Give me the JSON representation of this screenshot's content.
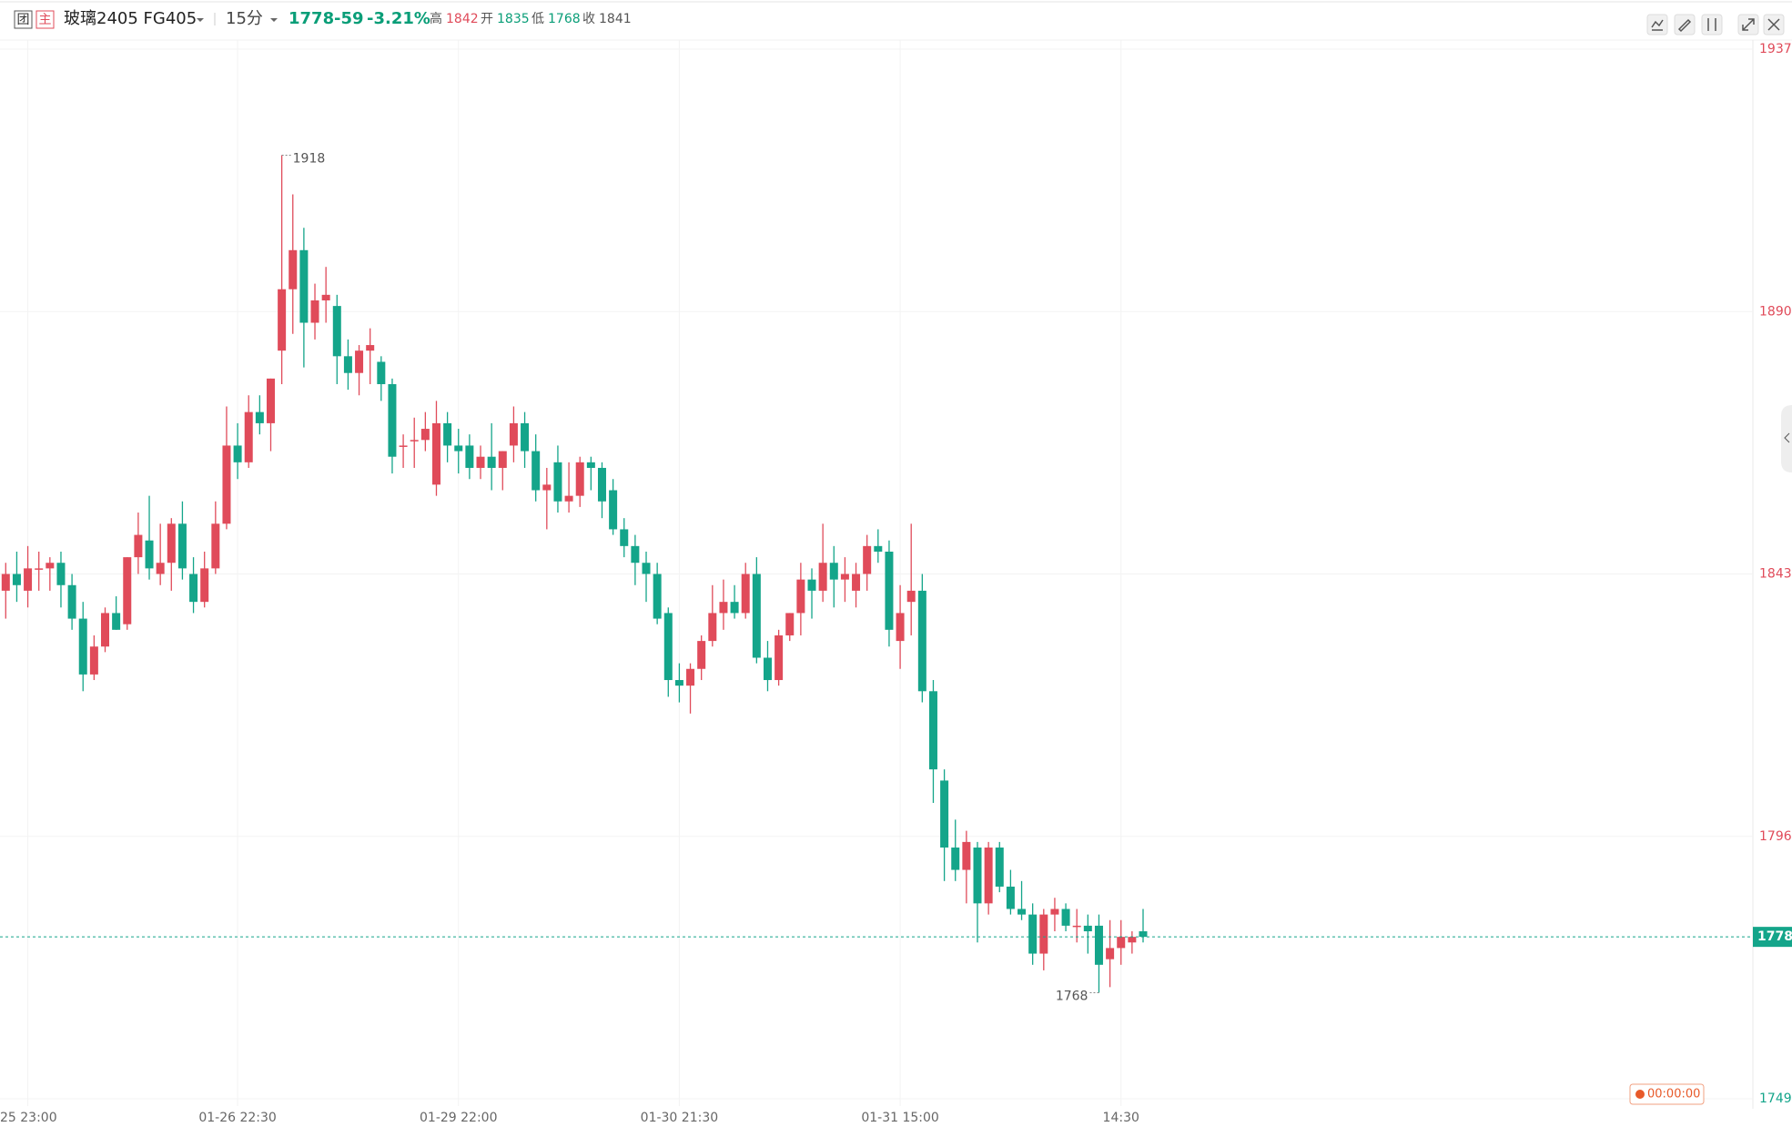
{
  "header": {
    "badge1": "团",
    "badge2": "主",
    "symbol": "玻璃2405 FG405",
    "period": "15分",
    "last": "1778",
    "change": "-59",
    "pct": "-3.21%",
    "high_label": "高",
    "high": "1842",
    "open_label": "开",
    "open": "1835",
    "low_label": "低",
    "low": "1768",
    "close_label": "收",
    "close": "1841"
  },
  "timer": "00:00:00",
  "chart_data": {
    "type": "candlestick",
    "up_color": "#e04b5a",
    "down_color": "#14a58a",
    "ylim": [
      1749,
      1937
    ],
    "yticks": [
      1749,
      1796,
      1843,
      1890,
      1937
    ],
    "grid": true,
    "last_price": 1778,
    "high_mark": 1918,
    "low_mark": 1768,
    "categories": [
      null,
      null,
      "25 23:00",
      null,
      null,
      null,
      null,
      null,
      null,
      null,
      null,
      null,
      null,
      null,
      null,
      null,
      null,
      null,
      null,
      null,
      null,
      "01-26 22:30",
      null,
      null,
      null,
      null,
      null,
      null,
      null,
      null,
      null,
      null,
      null,
      null,
      null,
      null,
      null,
      null,
      null,
      null,
      null,
      "01-29 22:00",
      null,
      null,
      null,
      null,
      null,
      null,
      null,
      null,
      null,
      null,
      null,
      null,
      null,
      null,
      null,
      null,
      null,
      null,
      null,
      "01-30 21:30",
      null,
      null,
      null,
      null,
      null,
      null,
      null,
      null,
      null,
      null,
      null,
      null,
      null,
      null,
      null,
      null,
      null,
      null,
      null,
      "01-31 15:00",
      null,
      null,
      null,
      null,
      null,
      null,
      null,
      null,
      null,
      null,
      null,
      null,
      null,
      null,
      null,
      null,
      null,
      null,
      null,
      "14:30",
      null,
      null
    ],
    "candles": [
      [
        1840,
        1845,
        1835,
        1843
      ],
      [
        1843,
        1847,
        1838,
        1841
      ],
      [
        1840,
        1848,
        1837,
        1844
      ],
      [
        1844,
        1847,
        1840,
        1844
      ],
      [
        1844,
        1846,
        1840,
        1845
      ],
      [
        1845,
        1847,
        1837,
        1841
      ],
      [
        1841,
        1843,
        1833,
        1835
      ],
      [
        1835,
        1838,
        1822,
        1825
      ],
      [
        1825,
        1832,
        1824,
        1830
      ],
      [
        1830,
        1837,
        1829,
        1836
      ],
      [
        1836,
        1839,
        1833,
        1833
      ],
      [
        1834,
        1846,
        1833,
        1846
      ],
      [
        1846,
        1854,
        1843,
        1850
      ],
      [
        1849,
        1857,
        1842,
        1844
      ],
      [
        1843,
        1852,
        1841,
        1845
      ],
      [
        1845,
        1853,
        1840,
        1852
      ],
      [
        1852,
        1856,
        1842,
        1844
      ],
      [
        1843,
        1846,
        1836,
        1838
      ],
      [
        1838,
        1847,
        1837,
        1844
      ],
      [
        1844,
        1856,
        1843,
        1852
      ],
      [
        1852,
        1873,
        1851,
        1866
      ],
      [
        1866,
        1870,
        1860,
        1863
      ],
      [
        1863,
        1875,
        1862,
        1872
      ],
      [
        1872,
        1875,
        1868,
        1870
      ],
      [
        1870,
        1878,
        1865,
        1878
      ],
      [
        1883,
        1918,
        1877,
        1894
      ],
      [
        1894,
        1911,
        1886,
        1901
      ],
      [
        1901,
        1905,
        1880,
        1888
      ],
      [
        1888,
        1895,
        1885,
        1892
      ],
      [
        1892,
        1898,
        1888,
        1893
      ],
      [
        1891,
        1893,
        1877,
        1882
      ],
      [
        1882,
        1885,
        1876,
        1879
      ],
      [
        1879,
        1884,
        1875,
        1883
      ],
      [
        1883,
        1887,
        1877,
        1884
      ],
      [
        1881,
        1882,
        1874,
        1877
      ],
      [
        1877,
        1878,
        1861,
        1864
      ],
      [
        1866,
        1868,
        1862,
        1866
      ],
      [
        1867,
        1871,
        1862,
        1867
      ],
      [
        1867,
        1872,
        1865,
        1869
      ],
      [
        1859,
        1874,
        1857,
        1870
      ],
      [
        1870,
        1872,
        1863,
        1866
      ],
      [
        1866,
        1869,
        1861,
        1865
      ],
      [
        1866,
        1868,
        1860,
        1862
      ],
      [
        1862,
        1866,
        1860,
        1864
      ],
      [
        1864,
        1870,
        1858,
        1862
      ],
      [
        1862,
        1865,
        1858,
        1865
      ],
      [
        1866,
        1873,
        1863,
        1870
      ],
      [
        1870,
        1872,
        1862,
        1865
      ],
      [
        1865,
        1868,
        1856,
        1858
      ],
      [
        1858,
        1862,
        1851,
        1859
      ],
      [
        1863,
        1866,
        1854,
        1856
      ],
      [
        1856,
        1863,
        1854,
        1857
      ],
      [
        1857,
        1864,
        1855,
        1863
      ],
      [
        1863,
        1864,
        1858,
        1862
      ],
      [
        1862,
        1863,
        1853,
        1856
      ],
      [
        1858,
        1860,
        1850,
        1851
      ],
      [
        1851,
        1853,
        1846,
        1848
      ],
      [
        1848,
        1850,
        1841,
        1845
      ],
      [
        1845,
        1847,
        1838,
        1843
      ],
      [
        1843,
        1845,
        1834,
        1835
      ],
      [
        1836,
        1837,
        1821,
        1824
      ],
      [
        1824,
        1827,
        1820,
        1823
      ],
      [
        1823,
        1827,
        1818,
        1826
      ],
      [
        1826,
        1832,
        1824,
        1831
      ],
      [
        1831,
        1841,
        1830,
        1836
      ],
      [
        1836,
        1842,
        1833,
        1838
      ],
      [
        1838,
        1841,
        1835,
        1836
      ],
      [
        1836,
        1845,
        1835,
        1843
      ],
      [
        1843,
        1846,
        1827,
        1828
      ],
      [
        1828,
        1831,
        1822,
        1824
      ],
      [
        1824,
        1833,
        1823,
        1832
      ],
      [
        1832,
        1836,
        1831,
        1836
      ],
      [
        1836,
        1845,
        1832,
        1842
      ],
      [
        1842,
        1844,
        1835,
        1840
      ],
      [
        1840,
        1852,
        1838,
        1845
      ],
      [
        1845,
        1848,
        1837,
        1842
      ],
      [
        1842,
        1846,
        1838,
        1843
      ],
      [
        1840,
        1845,
        1837,
        1843
      ],
      [
        1843,
        1850,
        1840,
        1848
      ],
      [
        1848,
        1851,
        1845,
        1847
      ],
      [
        1847,
        1849,
        1830,
        1833
      ],
      [
        1831,
        1841,
        1826,
        1836
      ],
      [
        1838,
        1852,
        1832,
        1840
      ],
      [
        1840,
        1843,
        1820,
        1822
      ],
      [
        1822,
        1824,
        1802,
        1808
      ],
      [
        1806,
        1808,
        1788,
        1794
      ],
      [
        1794,
        1799,
        1788,
        1790
      ],
      [
        1790,
        1797,
        1784,
        1795
      ],
      [
        1794,
        1795,
        1777,
        1784
      ],
      [
        1784,
        1795,
        1782,
        1794
      ],
      [
        1794,
        1795,
        1786,
        1787
      ],
      [
        1787,
        1790,
        1782,
        1783
      ],
      [
        1783,
        1788,
        1781,
        1782
      ],
      [
        1782,
        1784,
        1773,
        1775
      ],
      [
        1775,
        1783,
        1772,
        1782
      ],
      [
        1782,
        1785,
        1779,
        1783
      ],
      [
        1783,
        1784,
        1779,
        1780
      ],
      [
        1780,
        1783,
        1777,
        1780
      ],
      [
        1780,
        1782,
        1775,
        1779
      ],
      [
        1780,
        1782,
        1768,
        1773
      ],
      [
        1774,
        1781,
        1769,
        1776
      ],
      [
        1776,
        1781,
        1773,
        1778
      ],
      [
        1777,
        1779,
        1775,
        1778
      ],
      [
        1779,
        1783,
        1777,
        1778
      ]
    ]
  }
}
